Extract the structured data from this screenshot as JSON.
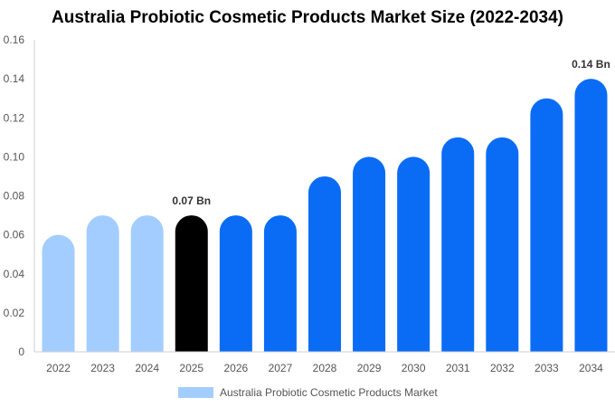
{
  "chart_data": {
    "type": "bar",
    "title": "Australia Probiotic Cosmetic Products Market Size (2022-2034)",
    "xlabel": "",
    "ylabel": "",
    "categories": [
      "2022",
      "2023",
      "2024",
      "2025",
      "2026",
      "2027",
      "2028",
      "2029",
      "2030",
      "2031",
      "2032",
      "2033",
      "2034"
    ],
    "series": [
      {
        "name": "Australia Probiotic Cosmetic Products Market",
        "values": [
          0.06,
          0.07,
          0.07,
          0.07,
          0.07,
          0.07,
          0.09,
          0.1,
          0.1,
          0.11,
          0.11,
          0.13,
          0.14
        ]
      }
    ],
    "ylim": [
      0,
      0.16
    ],
    "yticks": [
      "0",
      "0.02",
      "0.04",
      "0.06",
      "0.08",
      "0.10",
      "0.12",
      "0.14",
      "0.16"
    ],
    "data_labels": [
      {
        "category": "2025",
        "text": "0.07 Bn"
      },
      {
        "category": "2034",
        "text": "0.14 Bn"
      }
    ],
    "bar_colors": {
      "historical": "#a3cdff",
      "current": "#000000",
      "forecast": "#0a6cf5"
    },
    "historical_categories": [
      "2022",
      "2023",
      "2024"
    ],
    "current_category": "2025",
    "grid": false,
    "legend_position": "bottom",
    "legend_color": "#a3cdff"
  }
}
